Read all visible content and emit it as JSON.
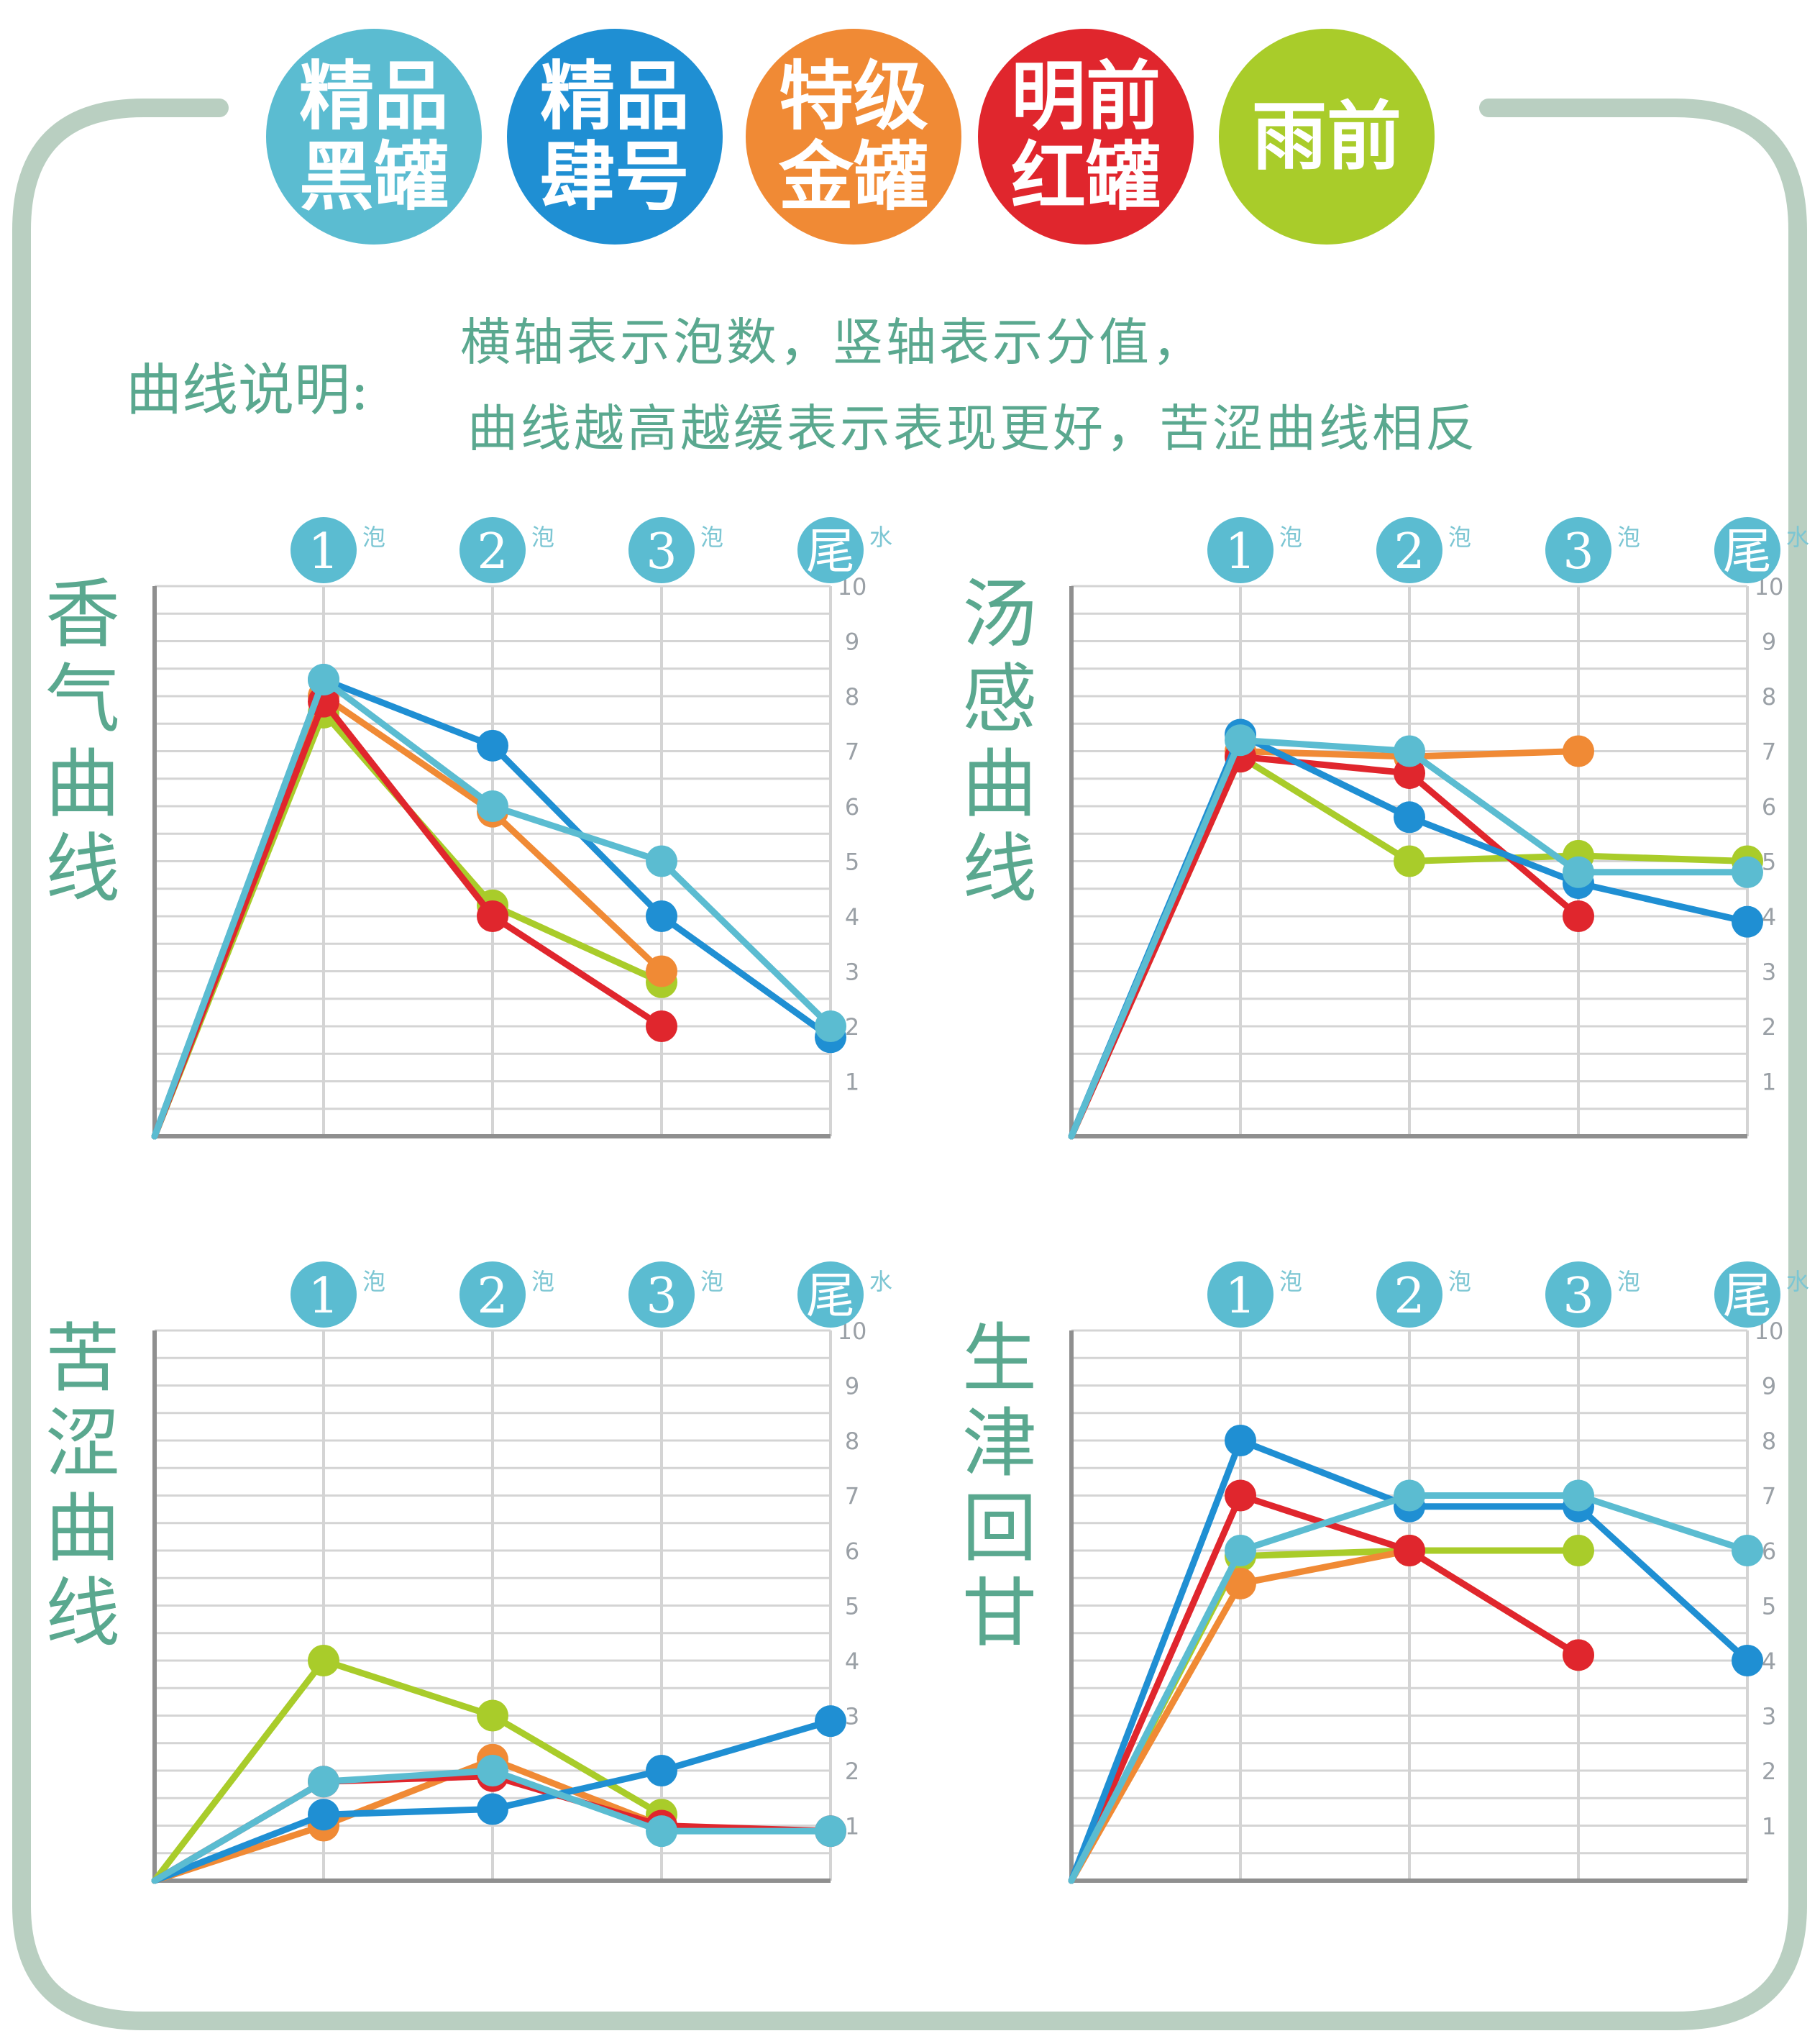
{
  "legend": [
    {
      "line1": "精品",
      "line2": "黑罐",
      "color": "#5bbcd1"
    },
    {
      "line1": "精品",
      "line2": "肆号",
      "color": "#1f8fd3"
    },
    {
      "line1": "特级",
      "line2": "金罐",
      "color": "#f08a35"
    },
    {
      "line1": "明前",
      "line2": "红罐",
      "color": "#e0262d"
    },
    {
      "line1": "雨前",
      "line2": "",
      "color": "#a9cc2a"
    }
  ],
  "description": {
    "label": "曲线说明:",
    "line1": "横轴表示泡数，竖轴表示分值，",
    "line2": "曲线越高越缓表示表现更好，苦涩曲线相反"
  },
  "colors": {
    "frame": "#b9cfc1",
    "text": "#5aa88f",
    "grid": "#d4d4d4",
    "axis": "#8f8f8f",
    "x_badge": "#5bbcd1"
  },
  "chart_data": [
    {
      "type": "line",
      "title": "香气曲线",
      "x": [
        0,
        1,
        2,
        3,
        4
      ],
      "x_tick_labels": [
        {
          "num": "1",
          "suffix": "泡"
        },
        {
          "num": "2",
          "suffix": "泡"
        },
        {
          "num": "3",
          "suffix": "泡"
        },
        {
          "num": "尾",
          "suffix": "水"
        }
      ],
      "y_ticks": [
        "1",
        "2",
        "3",
        "4",
        "5",
        "6",
        "7",
        "8",
        "9",
        "10"
      ],
      "ylim": [
        0,
        10
      ],
      "grid": true,
      "series": [
        {
          "color": "#a9cc2a",
          "values": [
            0,
            7.7,
            4.2,
            2.8,
            null
          ]
        },
        {
          "color": "#f08a35",
          "values": [
            0,
            8.0,
            5.9,
            3.0,
            null
          ]
        },
        {
          "color": "#e0262d",
          "values": [
            0,
            7.9,
            4.0,
            2.0,
            null
          ]
        },
        {
          "color": "#1f8fd3",
          "values": [
            0,
            8.3,
            7.1,
            4.0,
            1.8
          ]
        },
        {
          "color": "#5bbcd1",
          "values": [
            0,
            8.3,
            6.0,
            5.0,
            2.0
          ]
        }
      ]
    },
    {
      "type": "line",
      "title": "汤感曲线",
      "x": [
        0,
        1,
        2,
        3,
        4
      ],
      "x_tick_labels": [
        {
          "num": "1",
          "suffix": "泡"
        },
        {
          "num": "2",
          "suffix": "泡"
        },
        {
          "num": "3",
          "suffix": "泡"
        },
        {
          "num": "尾",
          "suffix": "水"
        }
      ],
      "y_ticks": [
        "1",
        "2",
        "3",
        "4",
        "5",
        "6",
        "7",
        "8",
        "9",
        "10"
      ],
      "ylim": [
        0,
        10
      ],
      "grid": true,
      "series": [
        {
          "color": "#a9cc2a",
          "values": [
            0,
            6.9,
            5.0,
            5.1,
            5.0
          ]
        },
        {
          "color": "#f08a35",
          "values": [
            0,
            7.0,
            6.9,
            7.0,
            null
          ]
        },
        {
          "color": "#e0262d",
          "values": [
            0,
            6.9,
            6.6,
            4.0,
            null
          ]
        },
        {
          "color": "#1f8fd3",
          "values": [
            0,
            7.3,
            5.8,
            4.6,
            3.9
          ]
        },
        {
          "color": "#5bbcd1",
          "values": [
            0,
            7.2,
            7.0,
            4.8,
            4.8
          ]
        }
      ]
    },
    {
      "type": "line",
      "title": "苦涩曲线",
      "x": [
        0,
        1,
        2,
        3,
        4
      ],
      "x_tick_labels": [
        {
          "num": "1",
          "suffix": "泡"
        },
        {
          "num": "2",
          "suffix": "泡"
        },
        {
          "num": "3",
          "suffix": "泡"
        },
        {
          "num": "尾",
          "suffix": "水"
        }
      ],
      "y_ticks": [
        "1",
        "2",
        "3",
        "4",
        "5",
        "6",
        "7",
        "8",
        "9",
        "10"
      ],
      "ylim": [
        0,
        10
      ],
      "grid": true,
      "series": [
        {
          "color": "#a9cc2a",
          "values": [
            0,
            4.0,
            3.0,
            1.2,
            null
          ]
        },
        {
          "color": "#f08a35",
          "values": [
            0,
            1.0,
            2.2,
            1.0,
            null
          ]
        },
        {
          "color": "#e0262d",
          "values": [
            0,
            1.8,
            1.9,
            1.0,
            0.9
          ]
        },
        {
          "color": "#1f8fd3",
          "values": [
            0,
            1.2,
            1.3,
            2.0,
            2.9
          ]
        },
        {
          "color": "#5bbcd1",
          "values": [
            0,
            1.8,
            2.0,
            0.9,
            0.9
          ]
        }
      ]
    },
    {
      "type": "line",
      "title": "生津回甘",
      "x": [
        0,
        1,
        2,
        3,
        4
      ],
      "x_tick_labels": [
        {
          "num": "1",
          "suffix": "泡"
        },
        {
          "num": "2",
          "suffix": "泡"
        },
        {
          "num": "3",
          "suffix": "泡"
        },
        {
          "num": "尾",
          "suffix": "水"
        }
      ],
      "y_ticks": [
        "1",
        "2",
        "3",
        "4",
        "5",
        "6",
        "7",
        "8",
        "9",
        "10"
      ],
      "ylim": [
        0,
        10
      ],
      "grid": true,
      "series": [
        {
          "color": "#a9cc2a",
          "values": [
            0,
            5.9,
            6.0,
            6.0,
            null
          ]
        },
        {
          "color": "#f08a35",
          "values": [
            0,
            5.4,
            6.0,
            4.1,
            null
          ]
        },
        {
          "color": "#e0262d",
          "values": [
            0,
            7.0,
            6.0,
            4.1,
            null
          ]
        },
        {
          "color": "#1f8fd3",
          "values": [
            0,
            8.0,
            6.8,
            6.8,
            4.0
          ]
        },
        {
          "color": "#5bbcd1",
          "values": [
            0,
            6.0,
            7.0,
            7.0,
            6.0
          ]
        }
      ]
    }
  ]
}
